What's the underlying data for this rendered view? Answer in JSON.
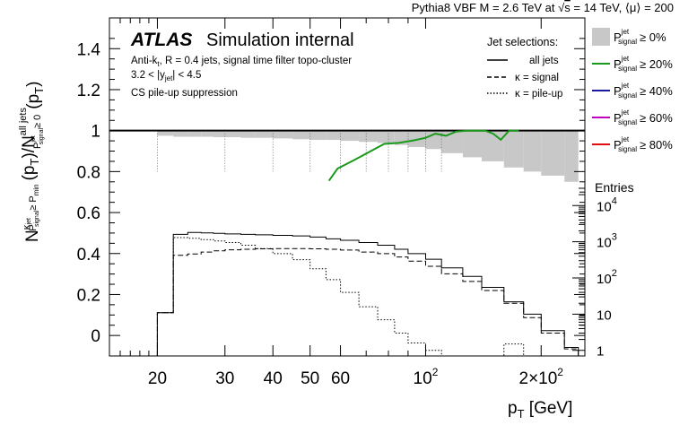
{
  "header": {
    "prefix": "Pythia8 VBF M = 2.6 TeV at ",
    "sqrt_s_label": "s",
    "suffix": " = 14 TeV, ⟨μ⟩ = 200"
  },
  "atlas": {
    "brand": "ATLAS",
    "subtitle": "Simulation internal",
    "line1_pre": "Anti-k",
    "line1_sub": "t",
    "line1_post": ", R = 0.4 jets, signal time filter topo-cluster",
    "line2_pre": "3.2 < |y",
    "line2_sub": "jet",
    "line2_post": "| < 4.5",
    "line3": "CS pile-up suppression"
  },
  "jet_selections": {
    "title": "Jet selections:",
    "items": [
      {
        "label": "all jets",
        "style": "solid"
      },
      {
        "label": "κ = signal",
        "style": "dashed"
      },
      {
        "label": "κ = pile-up",
        "style": "dotted"
      }
    ]
  },
  "threshold_legend": {
    "base": "P",
    "sup": "jet",
    "sub": "signal",
    "items": [
      {
        "cut": "≥ 0%",
        "color": "#c8c8c8",
        "kind": "box"
      },
      {
        "cut": "≥ 20%",
        "color": "#1a9a1a",
        "kind": "line"
      },
      {
        "cut": "≥ 40%",
        "color": "#1a1aa0",
        "kind": "line"
      },
      {
        "cut": "≥ 60%",
        "color": "#c000c0",
        "kind": "line"
      },
      {
        "cut": "≥ 80%",
        "color": "#e01010",
        "kind": "line"
      }
    ]
  },
  "y_axis": {
    "label_parts": [
      "N",
      "κ",
      "P",
      "jet",
      "signal",
      "≥ P",
      "min",
      "(p",
      "T",
      ")/N",
      "all jets",
      "P",
      "jet",
      "signal",
      "≥ 0",
      "(p",
      "T",
      ")"
    ],
    "tick_labels": [
      "0",
      "0.2",
      "0.4",
      "0.6",
      "0.8",
      "1",
      "1.2",
      "1.4"
    ]
  },
  "x_axis": {
    "label_main": "p",
    "label_sub": "T",
    "label_unit": " [GeV]",
    "tick_labels": [
      {
        "base": "20",
        "exp": ""
      },
      {
        "base": "30",
        "exp": ""
      },
      {
        "base": "40",
        "exp": ""
      },
      {
        "base": "50",
        "exp": ""
      },
      {
        "base": "60",
        "exp": ""
      },
      {
        "base": "10",
        "exp": "2"
      },
      {
        "base": "2×10",
        "exp": "2"
      }
    ]
  },
  "right_axis": {
    "title": "Entries",
    "tick_labels": [
      {
        "base": "1",
        "exp": ""
      },
      {
        "base": "10",
        "exp": ""
      },
      {
        "base": "10",
        "exp": "2"
      },
      {
        "base": "10",
        "exp": "3"
      },
      {
        "base": "10",
        "exp": "4"
      }
    ]
  },
  "chart_data": {
    "type": "line",
    "x_scale": "log",
    "xlim": [
      15,
      260
    ],
    "ylim": [
      -0.1,
      1.55
    ],
    "entries_scale": "log",
    "entries_range": [
      0.7,
      30000
    ],
    "bin_edges": [
      20,
      22,
      24,
      26,
      28,
      30,
      33,
      36,
      40,
      45,
      50,
      55,
      60,
      67,
      75,
      83,
      90,
      100,
      110,
      125,
      140,
      160,
      180,
      200,
      230,
      250
    ],
    "fraction_all_jets_ge0": {
      "values": [
        0.975,
        0.97,
        0.97,
        0.97,
        0.968,
        0.968,
        0.965,
        0.965,
        0.962,
        0.958,
        0.955,
        0.955,
        0.95,
        0.945,
        0.94,
        0.93,
        0.92,
        0.91,
        0.89,
        0.87,
        0.85,
        0.82,
        0.8,
        0.78,
        0.75
      ]
    },
    "fraction_ge20": {
      "x": [
        56,
        59,
        65,
        72,
        78,
        85,
        93,
        100,
        106,
        113,
        120,
        128,
        136,
        143,
        150,
        157,
        165,
        175
      ],
      "y": [
        0.755,
        0.815,
        0.855,
        0.9,
        0.935,
        0.94,
        0.952,
        0.965,
        0.985,
        0.975,
        0.995,
        1.0,
        1.0,
        1.0,
        0.985,
        0.955,
        1.0,
        1.0
      ]
    },
    "reference_line": 1.0,
    "entries": {
      "series": [
        {
          "name": "all jets",
          "style": "solid",
          "values": [
            11,
            1600,
            1800,
            1750,
            1700,
            1650,
            1600,
            1550,
            1500,
            1450,
            1350,
            1200,
            1100,
            950,
            800,
            620,
            470,
            330,
            190,
            110,
            55,
            22,
            10,
            3.5,
            1.2
          ]
        },
        {
          "name": "κ = signal",
          "style": "dashed",
          "values": [
            11,
            420,
            460,
            520,
            560,
            600,
            620,
            640,
            650,
            650,
            640,
            620,
            590,
            520,
            470,
            380,
            290,
            210,
            130,
            80,
            45,
            20,
            8,
            3,
            1.1
          ]
        },
        {
          "name": "κ = pile-up",
          "style": "dotted",
          "values": [
            11,
            1300,
            1250,
            1150,
            1050,
            950,
            800,
            650,
            470,
            320,
            180,
            90,
            40,
            16,
            7,
            3,
            1.6,
            1.0,
            0.7,
            0.7,
            0.7,
            1.5,
            0.7,
            0.7,
            0.7
          ]
        }
      ]
    }
  }
}
